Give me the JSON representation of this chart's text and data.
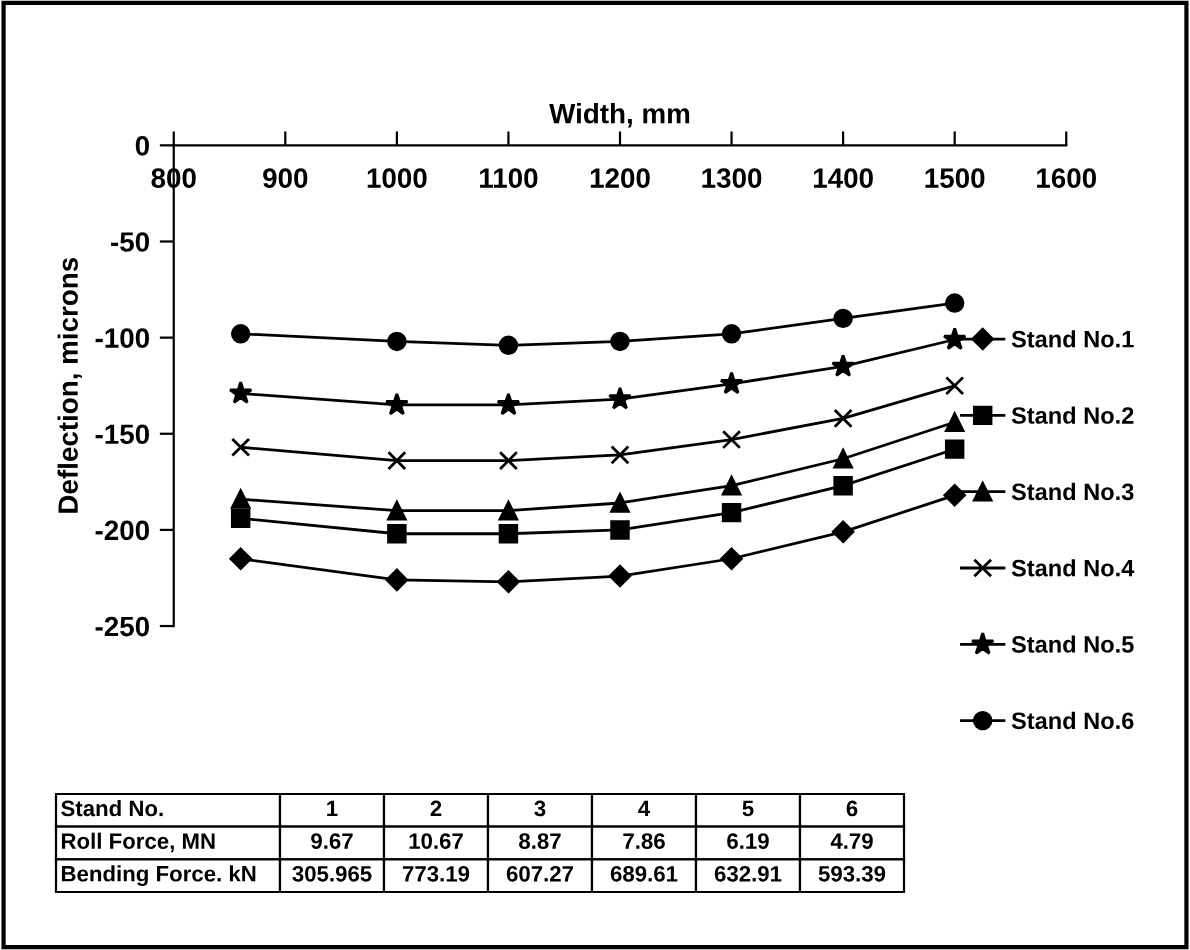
{
  "chart_data": {
    "type": "line",
    "xlabel": "Width, mm",
    "ylabel": "Deflection, microns",
    "x": [
      860,
      1000,
      1100,
      1200,
      1300,
      1400,
      1500
    ],
    "xlim": [
      800,
      1600
    ],
    "xticks": [
      800,
      900,
      1000,
      1100,
      1200,
      1300,
      1400,
      1500,
      1600
    ],
    "ylim": [
      -250,
      0
    ],
    "yticks": [
      -250,
      -200,
      -150,
      -100,
      -50,
      0
    ],
    "grid": false,
    "legend": "right",
    "line_style": "solid",
    "series": [
      {
        "name": "Stand No.1",
        "color": "#000000",
        "marker": "diamond",
        "values": [
          -215,
          -226,
          -227,
          -224,
          -215,
          -201,
          -182
        ]
      },
      {
        "name": "Stand No.2",
        "color": "#000000",
        "marker": "square",
        "values": [
          -194,
          -202,
          -202,
          -200,
          -191,
          -177,
          -158
        ]
      },
      {
        "name": "Stand No.3",
        "color": "#000000",
        "marker": "triangle",
        "values": [
          -184,
          -190,
          -190,
          -186,
          -177,
          -163,
          -144
        ]
      },
      {
        "name": "Stand No.4",
        "color": "#000000",
        "marker": "cross",
        "values": [
          -157,
          -164,
          -164,
          -161,
          -153,
          -142,
          -125
        ]
      },
      {
        "name": "Stand No.5",
        "color": "#000000",
        "marker": "star",
        "values": [
          -129,
          -135,
          -135,
          -132,
          -124,
          -115,
          -101
        ]
      },
      {
        "name": "Stand No.6",
        "color": "#000000",
        "marker": "circle",
        "values": [
          -98,
          -102,
          -104,
          -102,
          -98,
          -90,
          -82
        ]
      }
    ],
    "annotations": [
      "Stand No.",
      "1",
      "2",
      "3",
      "4",
      "5",
      "6",
      "Roll Force, MN",
      "9.67",
      "10.67",
      "8.87",
      "7.86",
      "6.19",
      "4.79",
      "Bending Force. kN",
      "305.965",
      "773.19",
      "607.27",
      "689.61",
      "632.91",
      "593.39"
    ]
  }
}
